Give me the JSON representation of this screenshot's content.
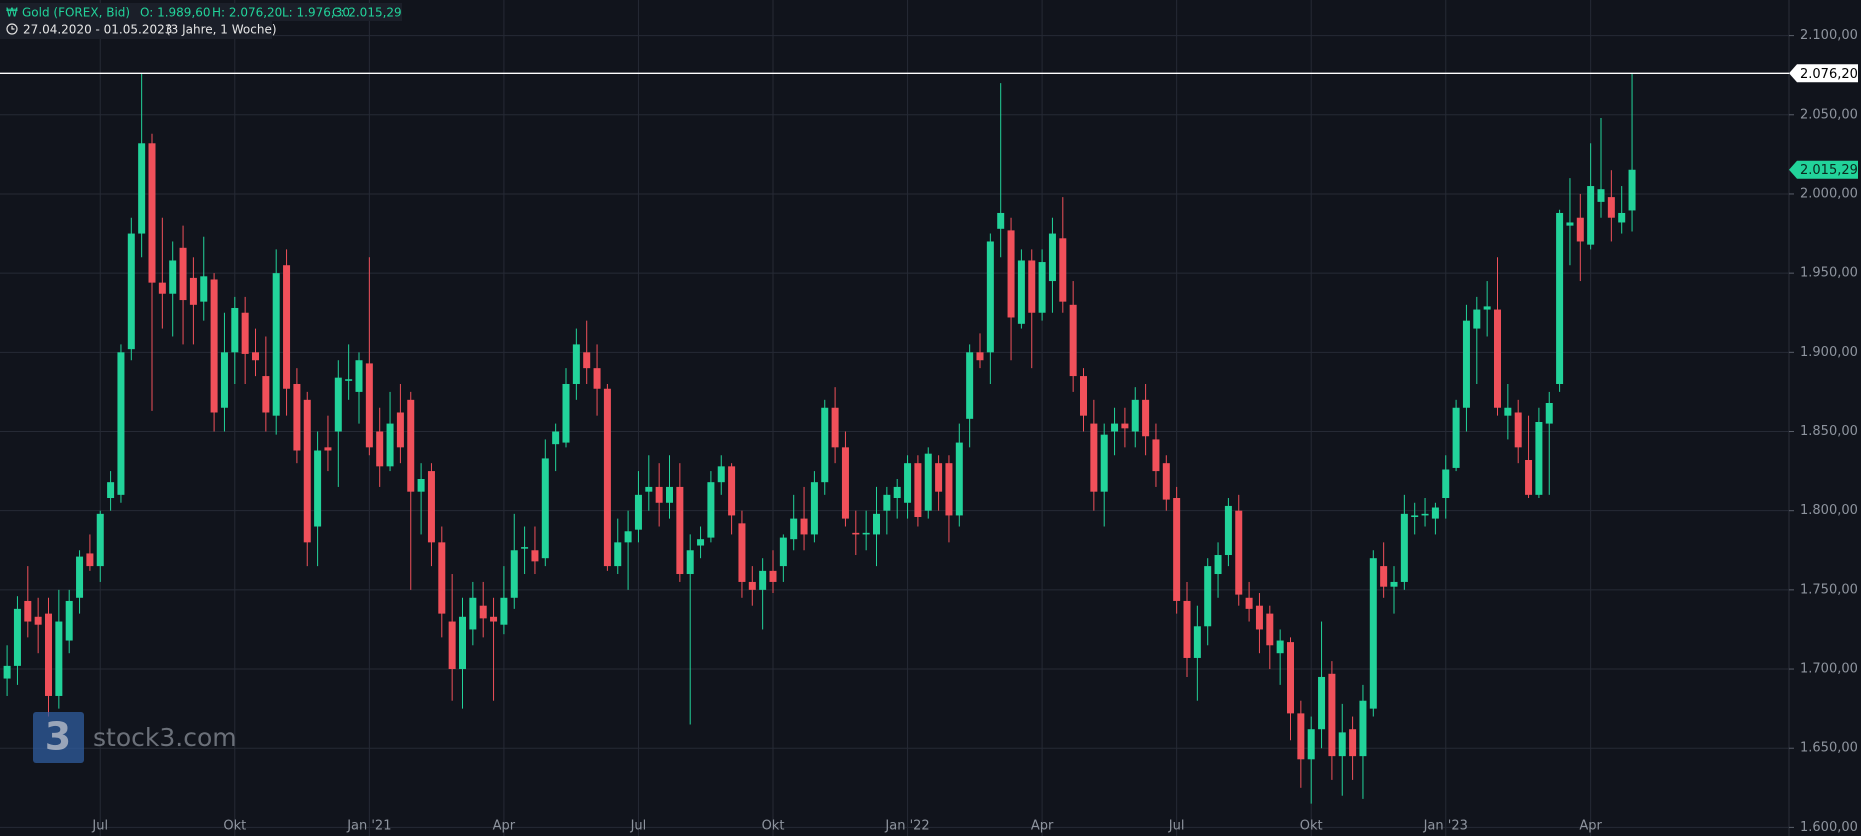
{
  "chart_data": {
    "type": "candlestick",
    "title": "Gold (FOREX, Bid)",
    "header_values": [
      "O: 1.989,60",
      "H: 2.076,20",
      "L: 1.976,30",
      "C: 2.015,29"
    ],
    "subtitle": "27.04.2020 - 01.05.2023",
    "period": "(3 Jahre, 1 Woche)",
    "watermark": "stock3.com",
    "watermark_logo": "3",
    "up_color": "#22d39a",
    "down_color": "#f0505a",
    "grid": true,
    "ylim": [
      1600,
      2100
    ],
    "yticks": [
      {
        "value": 1600,
        "label": "1.600,00"
      },
      {
        "value": 1650,
        "label": "1.650,00"
      },
      {
        "value": 1700,
        "label": "1.700,00"
      },
      {
        "value": 1750,
        "label": "1.750,00"
      },
      {
        "value": 1800,
        "label": "1.800,00"
      },
      {
        "value": 1850,
        "label": "1.850,00"
      },
      {
        "value": 1900,
        "label": "1.900,00"
      },
      {
        "value": 1950,
        "label": "1.950,00"
      },
      {
        "value": 2000,
        "label": "2.000,00"
      },
      {
        "value": 2050,
        "label": "2.050,00"
      },
      {
        "value": 2100,
        "label": "2.100,00"
      }
    ],
    "xticks": [
      {
        "value": 9,
        "label": "Jul"
      },
      {
        "value": 22,
        "label": "Okt"
      },
      {
        "value": 35,
        "label": "Jan '21"
      },
      {
        "value": 48,
        "label": "Apr"
      },
      {
        "value": 61,
        "label": "Jul"
      },
      {
        "value": 74,
        "label": "Okt"
      },
      {
        "value": 87,
        "label": "Jan '22"
      },
      {
        "value": 100,
        "label": "Apr"
      },
      {
        "value": 113,
        "label": "Jul"
      },
      {
        "value": 126,
        "label": "Okt"
      },
      {
        "value": 139,
        "label": "Jan '23"
      },
      {
        "value": 153,
        "label": "Apr"
      }
    ],
    "high_line": {
      "value": 2076.2,
      "label": "2.076,20"
    },
    "last_price": {
      "value": 2015.29,
      "label": "2.015,29"
    },
    "ohlc": [
      [
        1694,
        1715,
        1683,
        1702
      ],
      [
        1702,
        1746,
        1690,
        1738
      ],
      [
        1743,
        1765,
        1720,
        1730
      ],
      [
        1733,
        1745,
        1710,
        1728
      ],
      [
        1735,
        1745,
        1670,
        1683
      ],
      [
        1683,
        1750,
        1675,
        1730
      ],
      [
        1718,
        1750,
        1710,
        1743
      ],
      [
        1745,
        1775,
        1735,
        1771
      ],
      [
        1773,
        1785,
        1762,
        1765
      ],
      [
        1765,
        1800,
        1755,
        1798
      ],
      [
        1808,
        1825,
        1800,
        1818
      ],
      [
        1810,
        1905,
        1805,
        1900
      ],
      [
        1902,
        1985,
        1895,
        1975
      ],
      [
        1975,
        2076,
        1960,
        2032
      ],
      [
        2032,
        2038,
        1863,
        1944
      ],
      [
        1944,
        1985,
        1915,
        1937
      ],
      [
        1937,
        1970,
        1910,
        1958
      ],
      [
        1966,
        1980,
        1905,
        1933
      ],
      [
        1947,
        1960,
        1905,
        1930
      ],
      [
        1932,
        1973,
        1920,
        1948
      ],
      [
        1946,
        1950,
        1850,
        1862
      ],
      [
        1865,
        1925,
        1850,
        1900
      ],
      [
        1900,
        1935,
        1880,
        1928
      ],
      [
        1925,
        1935,
        1880,
        1899
      ],
      [
        1900,
        1915,
        1885,
        1895
      ],
      [
        1885,
        1910,
        1850,
        1862
      ],
      [
        1860,
        1965,
        1848,
        1950
      ],
      [
        1955,
        1965,
        1860,
        1877
      ],
      [
        1880,
        1890,
        1830,
        1838
      ],
      [
        1870,
        1875,
        1765,
        1780
      ],
      [
        1790,
        1850,
        1765,
        1838
      ],
      [
        1840,
        1860,
        1825,
        1838
      ],
      [
        1850,
        1895,
        1815,
        1884
      ],
      [
        1882,
        1905,
        1870,
        1883
      ],
      [
        1875,
        1900,
        1855,
        1895
      ],
      [
        1893,
        1960,
        1835,
        1840
      ],
      [
        1850,
        1865,
        1815,
        1828
      ],
      [
        1828,
        1875,
        1825,
        1855
      ],
      [
        1862,
        1880,
        1830,
        1840
      ],
      [
        1870,
        1875,
        1750,
        1812
      ],
      [
        1812,
        1830,
        1785,
        1820
      ],
      [
        1825,
        1830,
        1765,
        1780
      ],
      [
        1780,
        1790,
        1720,
        1735
      ],
      [
        1730,
        1760,
        1680,
        1700
      ],
      [
        1700,
        1745,
        1675,
        1733
      ],
      [
        1725,
        1755,
        1715,
        1745
      ],
      [
        1740,
        1755,
        1720,
        1732
      ],
      [
        1733,
        1745,
        1680,
        1730
      ],
      [
        1728,
        1765,
        1722,
        1745
      ],
      [
        1745,
        1798,
        1738,
        1775
      ],
      [
        1776,
        1790,
        1760,
        1777
      ],
      [
        1775,
        1790,
        1760,
        1768
      ],
      [
        1770,
        1845,
        1765,
        1833
      ],
      [
        1842,
        1855,
        1825,
        1850
      ],
      [
        1843,
        1890,
        1840,
        1880
      ],
      [
        1880,
        1915,
        1870,
        1905
      ],
      [
        1900,
        1920,
        1880,
        1890
      ],
      [
        1890,
        1905,
        1860,
        1877
      ],
      [
        1877,
        1880,
        1762,
        1765
      ],
      [
        1765,
        1795,
        1760,
        1780
      ],
      [
        1780,
        1800,
        1750,
        1787
      ],
      [
        1788,
        1825,
        1780,
        1810
      ],
      [
        1812,
        1835,
        1800,
        1815
      ],
      [
        1815,
        1830,
        1790,
        1805
      ],
      [
        1805,
        1835,
        1795,
        1815
      ],
      [
        1815,
        1830,
        1755,
        1760
      ],
      [
        1760,
        1785,
        1665,
        1775
      ],
      [
        1778,
        1790,
        1770,
        1782
      ],
      [
        1783,
        1825,
        1780,
        1818
      ],
      [
        1818,
        1835,
        1810,
        1828
      ],
      [
        1828,
        1830,
        1785,
        1797
      ],
      [
        1792,
        1800,
        1745,
        1755
      ],
      [
        1755,
        1765,
        1740,
        1750
      ],
      [
        1750,
        1770,
        1725,
        1762
      ],
      [
        1762,
        1775,
        1748,
        1755
      ],
      [
        1765,
        1785,
        1755,
        1783
      ],
      [
        1782,
        1810,
        1775,
        1795
      ],
      [
        1795,
        1815,
        1775,
        1785
      ],
      [
        1785,
        1825,
        1780,
        1818
      ],
      [
        1818,
        1870,
        1810,
        1865
      ],
      [
        1865,
        1878,
        1830,
        1840
      ],
      [
        1840,
        1850,
        1790,
        1795
      ],
      [
        1786,
        1800,
        1772,
        1785
      ],
      [
        1785,
        1800,
        1775,
        1786
      ],
      [
        1785,
        1815,
        1765,
        1798
      ],
      [
        1800,
        1815,
        1785,
        1810
      ],
      [
        1808,
        1820,
        1795,
        1815
      ],
      [
        1805,
        1835,
        1795,
        1830
      ],
      [
        1830,
        1835,
        1790,
        1796
      ],
      [
        1800,
        1840,
        1795,
        1836
      ],
      [
        1830,
        1835,
        1800,
        1812
      ],
      [
        1830,
        1835,
        1780,
        1797
      ],
      [
        1797,
        1855,
        1790,
        1843
      ],
      [
        1858,
        1905,
        1840,
        1900
      ],
      [
        1900,
        1912,
        1890,
        1895
      ],
      [
        1900,
        1975,
        1880,
        1970
      ],
      [
        1978,
        2070,
        1960,
        1988
      ],
      [
        1977,
        1985,
        1895,
        1922
      ],
      [
        1918,
        1965,
        1915,
        1958
      ],
      [
        1958,
        1965,
        1890,
        1925
      ],
      [
        1925,
        1965,
        1920,
        1957
      ],
      [
        1945,
        1985,
        1925,
        1975
      ],
      [
        1972,
        1998,
        1925,
        1932
      ],
      [
        1930,
        1945,
        1875,
        1885
      ],
      [
        1885,
        1890,
        1850,
        1860
      ],
      [
        1855,
        1870,
        1800,
        1812
      ],
      [
        1812,
        1855,
        1790,
        1848
      ],
      [
        1850,
        1865,
        1835,
        1855
      ],
      [
        1855,
        1865,
        1840,
        1852
      ],
      [
        1850,
        1878,
        1840,
        1870
      ],
      [
        1870,
        1880,
        1835,
        1847
      ],
      [
        1845,
        1855,
        1815,
        1825
      ],
      [
        1830,
        1835,
        1800,
        1807
      ],
      [
        1808,
        1815,
        1735,
        1743
      ],
      [
        1743,
        1755,
        1695,
        1707
      ],
      [
        1707,
        1740,
        1680,
        1727
      ],
      [
        1727,
        1770,
        1715,
        1765
      ],
      [
        1760,
        1780,
        1745,
        1772
      ],
      [
        1772,
        1808,
        1765,
        1803
      ],
      [
        1800,
        1810,
        1740,
        1747
      ],
      [
        1745,
        1755,
        1730,
        1738
      ],
      [
        1740,
        1748,
        1710,
        1725
      ],
      [
        1735,
        1740,
        1700,
        1715
      ],
      [
        1710,
        1725,
        1690,
        1718
      ],
      [
        1717,
        1720,
        1655,
        1672
      ],
      [
        1672,
        1680,
        1625,
        1643
      ],
      [
        1643,
        1670,
        1615,
        1662
      ],
      [
        1662,
        1730,
        1650,
        1695
      ],
      [
        1697,
        1705,
        1630,
        1645
      ],
      [
        1645,
        1678,
        1620,
        1660
      ],
      [
        1662,
        1670,
        1630,
        1645
      ],
      [
        1645,
        1690,
        1618,
        1680
      ],
      [
        1675,
        1775,
        1670,
        1770
      ],
      [
        1765,
        1780,
        1745,
        1752
      ],
      [
        1752,
        1765,
        1735,
        1755
      ],
      [
        1755,
        1810,
        1750,
        1798
      ],
      [
        1796,
        1805,
        1785,
        1797
      ],
      [
        1797,
        1808,
        1790,
        1798
      ],
      [
        1795,
        1805,
        1785,
        1802
      ],
      [
        1808,
        1835,
        1795,
        1826
      ],
      [
        1827,
        1870,
        1825,
        1865
      ],
      [
        1865,
        1930,
        1850,
        1920
      ],
      [
        1915,
        1935,
        1880,
        1927
      ],
      [
        1927,
        1945,
        1910,
        1929
      ],
      [
        1927,
        1960,
        1860,
        1865
      ],
      [
        1860,
        1880,
        1845,
        1865
      ],
      [
        1862,
        1870,
        1830,
        1840
      ],
      [
        1832,
        1860,
        1808,
        1810
      ],
      [
        1810,
        1865,
        1808,
        1856
      ],
      [
        1855,
        1875,
        1810,
        1868
      ],
      [
        1880,
        1990,
        1875,
        1988
      ],
      [
        1980,
        2010,
        1955,
        1982
      ],
      [
        1985,
        2000,
        1945,
        1970
      ],
      [
        1968,
        2032,
        1965,
        2005
      ],
      [
        1995,
        2048,
        1985,
        2003
      ],
      [
        1998,
        2015,
        1970,
        1985
      ],
      [
        1982,
        2005,
        1975,
        1988
      ],
      [
        1989.6,
        2076.2,
        1976.3,
        2015.29
      ]
    ]
  }
}
